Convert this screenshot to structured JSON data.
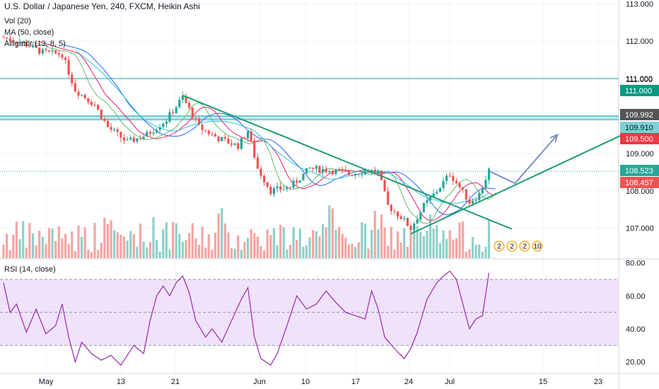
{
  "header": {
    "title": "U.S. Dollar / Japanese Yen, 240, FXCM, Heikin Ashi",
    "indicators": [
      "Vol (20)",
      "MA (50, close)",
      "Alligator (13, 8, 5)"
    ]
  },
  "rsi": {
    "title": "RSI (14, close)"
  },
  "colors": {
    "up": "#26a69a",
    "down": "#ef5350",
    "vol_up": "#8fd1c9",
    "vol_down": "#f3a6a4",
    "trend": "#1e9e71",
    "hline": "#7fd0d8",
    "rsi": "#9c27b0",
    "rsi_band": "#efe2fb",
    "projection": "#7e8fc7"
  },
  "chart_data": [
    {
      "type": "candlestick",
      "title": "U.S. Dollar / Japanese Yen, 240, FXCM, Heikin Ashi",
      "x_ticks": [
        "May",
        "13",
        "21",
        "Jun",
        "10",
        "17",
        "24",
        "Jul",
        "15",
        "23"
      ],
      "y_ticks": [
        "113.000",
        "112.000",
        "111.000",
        "109.000",
        "108.000",
        "107.000"
      ],
      "ylim": [
        106.2,
        113.1
      ],
      "grid": true,
      "price_labels": [
        {
          "value": "111.000",
          "kind": "line",
          "color": "#7fd0d8",
          "text_color": "#131722"
        },
        {
          "value": "111.000",
          "kind": "tag",
          "color": "#089981"
        },
        {
          "value": "109.992",
          "kind": "tag",
          "color": "#555555"
        },
        {
          "value": "109.910",
          "kind": "tag",
          "color": "#7fd0d8",
          "text_color": "#131722"
        },
        {
          "value": "109.500",
          "kind": "tag",
          "color": "#f23645"
        },
        {
          "value": "108.523",
          "kind": "tag",
          "color": "#26a69a"
        },
        {
          "value": "108.457",
          "kind": "tag",
          "color": "#ef5350"
        }
      ],
      "horizontal_lines": [
        111.0,
        109.91,
        109.992
      ],
      "last_price": 108.523,
      "trendlines": [
        {
          "from": [
            0.275,
            110.55
          ],
          "to": [
            0.78,
            106.98
          ]
        },
        {
          "from": [
            0.625,
            106.85
          ],
          "to": [
            0.95,
            109.5
          ]
        }
      ],
      "projection": [
        [
          0.745,
          108.53
        ],
        [
          0.785,
          108.2
        ],
        [
          0.85,
          109.5
        ]
      ],
      "anchors": [
        {
          "t": 0.0,
          "p": 112.1
        },
        {
          "t": 0.03,
          "p": 111.95
        },
        {
          "t": 0.06,
          "p": 111.7
        },
        {
          "t": 0.09,
          "p": 111.65
        },
        {
          "t": 0.11,
          "p": 110.7
        },
        {
          "t": 0.14,
          "p": 110.3
        },
        {
          "t": 0.16,
          "p": 109.7
        },
        {
          "t": 0.19,
          "p": 109.3
        },
        {
          "t": 0.22,
          "p": 109.5
        },
        {
          "t": 0.25,
          "p": 109.9
        },
        {
          "t": 0.275,
          "p": 110.5
        },
        {
          "t": 0.3,
          "p": 109.7
        },
        {
          "t": 0.33,
          "p": 109.4
        },
        {
          "t": 0.36,
          "p": 109.2
        },
        {
          "t": 0.375,
          "p": 109.6
        },
        {
          "t": 0.39,
          "p": 108.6
        },
        {
          "t": 0.41,
          "p": 108.0
        },
        {
          "t": 0.44,
          "p": 108.1
        },
        {
          "t": 0.47,
          "p": 108.6
        },
        {
          "t": 0.5,
          "p": 108.55
        },
        {
          "t": 0.53,
          "p": 108.45
        },
        {
          "t": 0.56,
          "p": 108.55
        },
        {
          "t": 0.575,
          "p": 108.5
        },
        {
          "t": 0.59,
          "p": 107.6
        },
        {
          "t": 0.61,
          "p": 107.3
        },
        {
          "t": 0.625,
          "p": 107.0
        },
        {
          "t": 0.645,
          "p": 107.6
        },
        {
          "t": 0.665,
          "p": 108.0
        },
        {
          "t": 0.685,
          "p": 108.45
        },
        {
          "t": 0.7,
          "p": 108.1
        },
        {
          "t": 0.715,
          "p": 107.7
        },
        {
          "t": 0.73,
          "p": 107.9
        },
        {
          "t": 0.745,
          "p": 108.55
        }
      ]
    },
    {
      "type": "line",
      "title": "RSI (14, close)",
      "y_ticks": [
        "80.00",
        "60.00",
        "40.00",
        "20.00"
      ],
      "ylim": [
        13,
        82
      ],
      "band": [
        30,
        70
      ],
      "anchors": [
        {
          "t": 0.0,
          "v": 68
        },
        {
          "t": 0.01,
          "v": 50
        },
        {
          "t": 0.02,
          "v": 55
        },
        {
          "t": 0.035,
          "v": 38
        },
        {
          "t": 0.05,
          "v": 52
        },
        {
          "t": 0.065,
          "v": 37
        },
        {
          "t": 0.08,
          "v": 42
        },
        {
          "t": 0.09,
          "v": 55
        },
        {
          "t": 0.1,
          "v": 35
        },
        {
          "t": 0.11,
          "v": 20
        },
        {
          "t": 0.12,
          "v": 32
        },
        {
          "t": 0.135,
          "v": 25
        },
        {
          "t": 0.15,
          "v": 21
        },
        {
          "t": 0.165,
          "v": 24
        },
        {
          "t": 0.18,
          "v": 18
        },
        {
          "t": 0.2,
          "v": 30
        },
        {
          "t": 0.215,
          "v": 25
        },
        {
          "t": 0.225,
          "v": 45
        },
        {
          "t": 0.235,
          "v": 60
        },
        {
          "t": 0.245,
          "v": 66
        },
        {
          "t": 0.255,
          "v": 60
        },
        {
          "t": 0.265,
          "v": 68
        },
        {
          "t": 0.275,
          "v": 72
        },
        {
          "t": 0.285,
          "v": 62
        },
        {
          "t": 0.295,
          "v": 45
        },
        {
          "t": 0.31,
          "v": 35
        },
        {
          "t": 0.32,
          "v": 40
        },
        {
          "t": 0.335,
          "v": 32
        },
        {
          "t": 0.35,
          "v": 45
        },
        {
          "t": 0.365,
          "v": 58
        },
        {
          "t": 0.375,
          "v": 65
        },
        {
          "t": 0.385,
          "v": 35
        },
        {
          "t": 0.395,
          "v": 22
        },
        {
          "t": 0.41,
          "v": 18
        },
        {
          "t": 0.42,
          "v": 25
        },
        {
          "t": 0.435,
          "v": 42
        },
        {
          "t": 0.45,
          "v": 60
        },
        {
          "t": 0.465,
          "v": 52
        },
        {
          "t": 0.48,
          "v": 55
        },
        {
          "t": 0.495,
          "v": 63
        },
        {
          "t": 0.51,
          "v": 56
        },
        {
          "t": 0.525,
          "v": 50
        },
        {
          "t": 0.54,
          "v": 48
        },
        {
          "t": 0.555,
          "v": 46
        },
        {
          "t": 0.565,
          "v": 63
        },
        {
          "t": 0.575,
          "v": 52
        },
        {
          "t": 0.585,
          "v": 35
        },
        {
          "t": 0.6,
          "v": 28
        },
        {
          "t": 0.615,
          "v": 22
        },
        {
          "t": 0.625,
          "v": 28
        },
        {
          "t": 0.635,
          "v": 38
        },
        {
          "t": 0.65,
          "v": 58
        },
        {
          "t": 0.665,
          "v": 68
        },
        {
          "t": 0.675,
          "v": 72
        },
        {
          "t": 0.685,
          "v": 75
        },
        {
          "t": 0.695,
          "v": 70
        },
        {
          "t": 0.705,
          "v": 55
        },
        {
          "t": 0.715,
          "v": 40
        },
        {
          "t": 0.725,
          "v": 46
        },
        {
          "t": 0.735,
          "v": 48
        },
        {
          "t": 0.745,
          "v": 74
        }
      ]
    }
  ],
  "markers": [
    "2",
    "2",
    "2",
    "10"
  ]
}
